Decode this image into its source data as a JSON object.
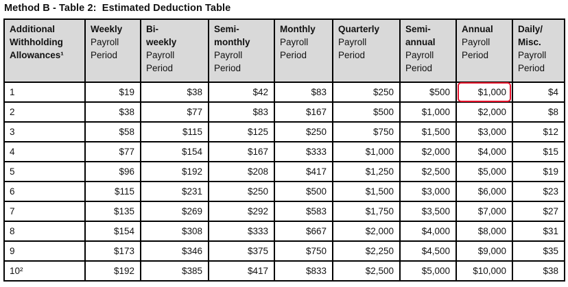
{
  "page": {
    "title": "Method B - Table 2:  Estimated Deduction Table"
  },
  "colors": {
    "header_bg": "#d9d9d9",
    "border": "#000000",
    "highlight_red": "#e8112d"
  },
  "table": {
    "columns": [
      {
        "id": "additional-withholding-allowances",
        "bold_lines": [
          "Additional",
          "Withholding",
          "Allowances¹"
        ],
        "normal_lines": []
      },
      {
        "id": "weekly",
        "bold_lines": [
          "Weekly"
        ],
        "normal_lines": [
          "Payroll",
          "Period"
        ]
      },
      {
        "id": "biweekly",
        "bold_lines": [
          "Bi-",
          "weekly"
        ],
        "normal_lines": [
          "Payroll",
          "Period"
        ]
      },
      {
        "id": "semimonthly",
        "bold_lines": [
          "Semi-",
          "monthly"
        ],
        "normal_lines": [
          "Payroll",
          "Period"
        ]
      },
      {
        "id": "monthly",
        "bold_lines": [
          "Monthly"
        ],
        "normal_lines": [
          "Payroll",
          "Period"
        ]
      },
      {
        "id": "quarterly",
        "bold_lines": [
          "Quarterly"
        ],
        "normal_lines": [
          "Payroll",
          "Period"
        ]
      },
      {
        "id": "semiannual",
        "bold_lines": [
          "Semi-",
          "annual"
        ],
        "normal_lines": [
          "Payroll",
          "Period"
        ]
      },
      {
        "id": "annual",
        "bold_lines": [
          "Annual"
        ],
        "normal_lines": [
          "Payroll",
          "Period"
        ]
      },
      {
        "id": "dailymisc",
        "bold_lines": [
          "Daily/",
          "Misc."
        ],
        "normal_lines": [
          "Payroll",
          "Period"
        ]
      }
    ],
    "rows": [
      [
        "1",
        "$19",
        "$38",
        "$42",
        "$83",
        "$250",
        "$500",
        "$1,000",
        "$4"
      ],
      [
        "2",
        "$38",
        "$77",
        "$83",
        "$167",
        "$500",
        "$1,000",
        "$2,000",
        "$8"
      ],
      [
        "3",
        "$58",
        "$115",
        "$125",
        "$250",
        "$750",
        "$1,500",
        "$3,000",
        "$12"
      ],
      [
        "4",
        "$77",
        "$154",
        "$167",
        "$333",
        "$1,000",
        "$2,000",
        "$4,000",
        "$15"
      ],
      [
        "5",
        "$96",
        "$192",
        "$208",
        "$417",
        "$1,250",
        "$2,500",
        "$5,000",
        "$19"
      ],
      [
        "6",
        "$115",
        "$231",
        "$250",
        "$500",
        "$1,500",
        "$3,000",
        "$6,000",
        "$23"
      ],
      [
        "7",
        "$135",
        "$269",
        "$292",
        "$583",
        "$1,750",
        "$3,500",
        "$7,000",
        "$27"
      ],
      [
        "8",
        "$154",
        "$308",
        "$333",
        "$667",
        "$2,000",
        "$4,000",
        "$8,000",
        "$31"
      ],
      [
        "9",
        "$173",
        "$346",
        "$375",
        "$750",
        "$2,250",
        "$4,500",
        "$9,000",
        "$35"
      ],
      [
        "10²",
        "$192",
        "$385",
        "$417",
        "$833",
        "$2,500",
        "$5,000",
        "$10,000",
        "$38"
      ]
    ],
    "highlight": {
      "row_index": 0,
      "col_index": 7,
      "value": "$1,000"
    }
  }
}
